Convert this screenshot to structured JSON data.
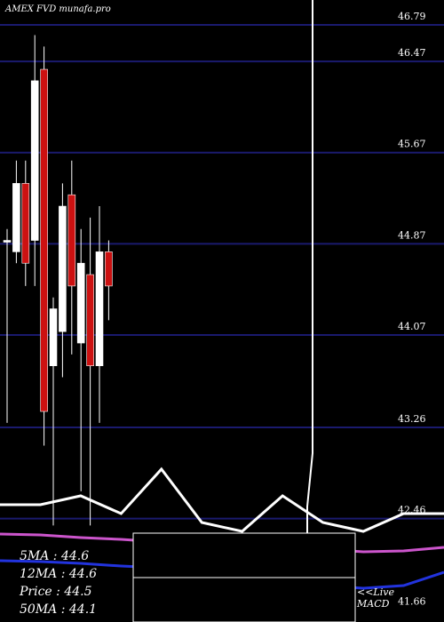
{
  "chart_data": {
    "type": "candlestick",
    "title": "AMEX  FVD munafa.pro",
    "ylim": [
      41.4,
      47.0
    ],
    "y_ticks": [
      46.79,
      46.47,
      45.67,
      44.87,
      44.07,
      43.26,
      42.46,
      41.66
    ],
    "candles": [
      {
        "open": 44.9,
        "high": 45.0,
        "low": 43.3,
        "close": 44.9,
        "color": "white"
      },
      {
        "open": 44.8,
        "high": 45.6,
        "low": 44.7,
        "close": 45.4,
        "color": "white"
      },
      {
        "open": 45.4,
        "high": 45.6,
        "low": 44.5,
        "close": 44.7,
        "color": "red"
      },
      {
        "open": 44.9,
        "high": 46.7,
        "low": 44.5,
        "close": 46.3,
        "color": "white"
      },
      {
        "open": 46.4,
        "high": 46.6,
        "low": 43.1,
        "close": 43.4,
        "color": "red"
      },
      {
        "open": 43.8,
        "high": 44.4,
        "low": 42.4,
        "close": 44.3,
        "color": "white"
      },
      {
        "open": 44.1,
        "high": 45.4,
        "low": 43.7,
        "close": 45.2,
        "color": "white"
      },
      {
        "open": 45.3,
        "high": 45.6,
        "low": 43.9,
        "close": 44.5,
        "color": "red"
      },
      {
        "open": 44.0,
        "high": 45.0,
        "low": 42.7,
        "close": 44.7,
        "color": "white"
      },
      {
        "open": 44.6,
        "high": 45.1,
        "low": 42.4,
        "close": 43.8,
        "color": "red"
      },
      {
        "open": 43.8,
        "high": 45.2,
        "low": 43.3,
        "close": 44.8,
        "color": "white"
      },
      {
        "open": 44.8,
        "high": 44.9,
        "low": 44.2,
        "close": 44.5,
        "color": "red"
      }
    ],
    "indicator_lines": [
      {
        "name": "white-oscillator",
        "color": "#ffffff",
        "values": [
          42.5,
          42.5,
          42.6,
          42.4,
          42.9,
          42.3,
          42.2,
          42.6,
          42.3,
          42.2,
          42.4,
          42.4
        ]
      },
      {
        "name": "magenta-ma",
        "color": "#cc55cc",
        "values": [
          42.17,
          42.16,
          42.13,
          42.11,
          42.08,
          42.06,
          42.05,
          42.02,
          42.0,
          41.97,
          41.98,
          42.02
        ]
      },
      {
        "name": "blue-ma",
        "color": "#2233dd",
        "values": [
          41.87,
          41.86,
          41.84,
          41.81,
          41.79,
          41.78,
          41.72,
          41.64,
          41.59,
          41.56,
          41.59,
          41.74
        ]
      }
    ],
    "grid": true
  },
  "legend": {
    "ma5": "5MA : 44.6",
    "ma12": "12MA : 44.6",
    "price": "Price   : 44.5",
    "ma50": "50MA : 44.1"
  },
  "live": {
    "line1": "<<Live",
    "line2": "MACD"
  }
}
